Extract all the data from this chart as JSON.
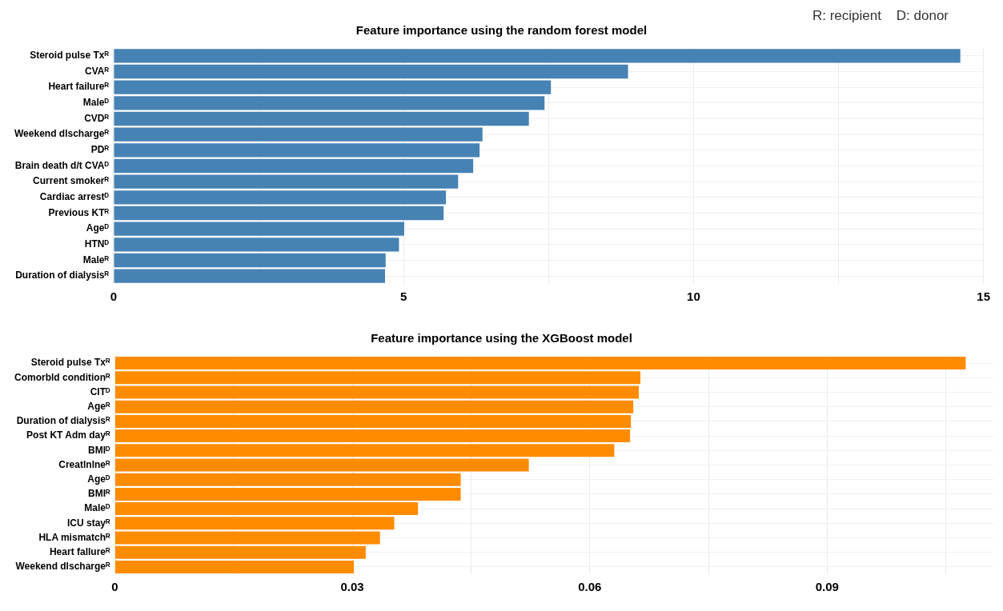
{
  "chart_data": [
    {
      "type": "bar",
      "orientation": "horizontal",
      "title": "Feature importance using the random forest model",
      "annotations": [
        "R: recipient    D: donor"
      ],
      "categories": [
        "Steroid pulse Txᴿ",
        "CVAᴿ",
        "Heart failureᴿ",
        "Maleᴰ",
        "CVDᴿ",
        "Weekend dlschargeᴿ",
        "PDᴿ",
        "Brain death d/t CVAᴰ",
        "Current smokerᴿ",
        "Cardiac arrestᴰ",
        "Previous KTᴿ",
        "Ageᴰ",
        "HTNᴰ",
        "Maleᴿ",
        "Duration of dialysisᴿ"
      ],
      "values": [
        14.6,
        8.87,
        7.54,
        7.43,
        7.16,
        6.36,
        6.31,
        6.2,
        5.94,
        5.73,
        5.69,
        5.01,
        4.92,
        4.69,
        4.68
      ],
      "color": "#4682b4",
      "xlim": [
        0,
        15
      ],
      "xticks": [
        0,
        {
          "value": 2.5,
          "label": null
        },
        5,
        {
          "value": 7.5,
          "label": null
        },
        10,
        {
          "value": 12.5,
          "label": null
        },
        15
      ],
      "grid": true,
      "legend": false
    },
    {
      "type": "bar",
      "orientation": "horizontal",
      "title": "Feature importance using the XGBoost model",
      "categories": [
        "Steroid pulse Txᴿ",
        "Comorbld conditionᴿ",
        "CITᴰ",
        "Ageᴿ",
        "Duration of dialysisᴿ",
        "Post KT Adm dayᴿ",
        "BMIᴰ",
        "Creatlnlneᴿ",
        "Ageᴰ",
        "BMIᴿ",
        "Maleᴰ",
        "ICU stayᴿ",
        "HLA mismatchᴿ",
        "Heart fallureᴿ",
        "Weekend dlschargeᴿ"
      ],
      "values": [
        0.1075,
        0.0664,
        0.0662,
        0.0655,
        0.0652,
        0.0651,
        0.0631,
        0.0523,
        0.0437,
        0.0437,
        0.0383,
        0.0353,
        0.0335,
        0.0317,
        0.0302
      ],
      "color": "#ff8c00",
      "xlim": [
        0,
        0.111
      ],
      "xticks": [
        0,
        {
          "value": 0.015,
          "label": null
        },
        0.03,
        {
          "value": 0.045,
          "label": null
        },
        0.06,
        {
          "value": 0.075,
          "label": null
        },
        0.09,
        {
          "value": 0.105,
          "label": null
        }
      ],
      "grid": true,
      "legend": false
    }
  ]
}
